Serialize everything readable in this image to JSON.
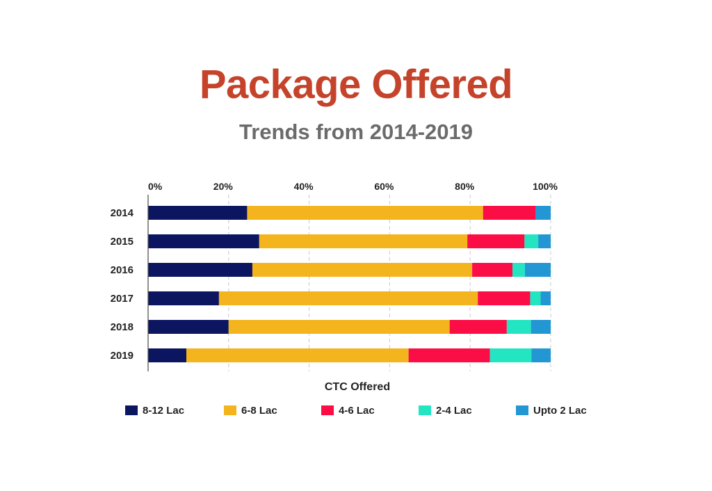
{
  "colors": {
    "title": "#C5432A",
    "subtitle": "#6B6B6B",
    "series": [
      "#0B1560",
      "#F4B41E",
      "#FB0D46",
      "#23E5C2",
      "#2297D3"
    ],
    "grid": "#C8C8C8",
    "axis": "#555555"
  },
  "chart_data": {
    "type": "bar",
    "orientation": "horizontal",
    "stacked": "percent",
    "title": "Package Offered",
    "subtitle": "Trends from 2014-2019",
    "xlabel": "CTC Offered",
    "ylabel": "",
    "xlim": [
      0,
      100
    ],
    "xticks": [
      "0%",
      "20%",
      "40%",
      "60%",
      "80%",
      "100%"
    ],
    "grid": true,
    "legend_position": "bottom",
    "categories": [
      "2014",
      "2015",
      "2016",
      "2017",
      "2018",
      "2019"
    ],
    "series": [
      {
        "name": "8-12 Lac",
        "values": [
          24.6,
          27.6,
          25.9,
          17.6,
          20.0,
          9.5
        ]
      },
      {
        "name": "6-8 Lac",
        "values": [
          58.6,
          51.7,
          54.6,
          64.3,
          54.9,
          55.2
        ]
      },
      {
        "name": "4-6 Lac",
        "values": [
          13.0,
          14.2,
          10.0,
          13.0,
          14.2,
          20.2
        ]
      },
      {
        "name": "2-4 Lac",
        "values": [
          0.0,
          3.4,
          3.1,
          2.6,
          6.0,
          10.3
        ]
      },
      {
        "name": "Upto 2 Lac",
        "values": [
          3.8,
          3.1,
          6.4,
          2.5,
          4.9,
          4.8
        ]
      }
    ]
  }
}
